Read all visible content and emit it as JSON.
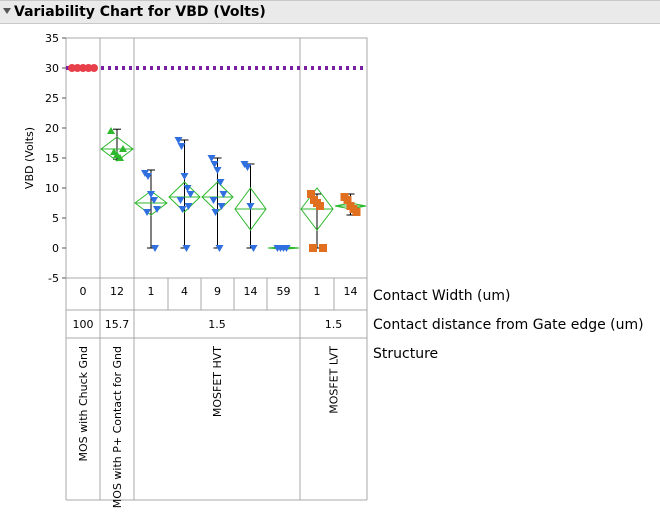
{
  "title": "Variability Chart for VBD (Volts)",
  "chart_data": {
    "type": "variability",
    "title": "Variability Chart for VBD (Volts)",
    "ylabel": "VBD (Volts)",
    "ylim": [
      -5,
      35
    ],
    "yticks": [
      -5,
      0,
      5,
      10,
      15,
      20,
      25,
      30,
      35
    ],
    "reference_line": 30,
    "colors": {
      "green": "#2db82d",
      "blue": "#2f6fe0",
      "orange": "#e07020",
      "red": "#e8404a",
      "purple": "#7a1fa0"
    },
    "factor_labels": [
      "Contact Width (um)",
      "Contact distance from Gate edge (um)",
      "Structure"
    ],
    "groups": [
      {
        "structure": "MOS with Chuck Gnd",
        "distance": "100",
        "cells": [
          {
            "width": "0",
            "marker": "red",
            "points": [
              30,
              30,
              30,
              30,
              30
            ],
            "mean": null,
            "range": [
              29.8,
              30.2
            ]
          }
        ]
      },
      {
        "structure": "MOS with P+ Contact for Gnd",
        "distance": "15.7",
        "cells": [
          {
            "width": "12",
            "marker": "green",
            "points": [
              19.5,
              16,
              15.5,
              15,
              16.5
            ],
            "mean": 16.5,
            "diamond": [
              14.5,
              18.5
            ],
            "range": [
              14.8,
              19.8
            ]
          }
        ]
      },
      {
        "structure": "MOSFET HVT",
        "distance": "1.5",
        "cells": [
          {
            "width": "1",
            "marker": "blue",
            "points": [
              12.5,
              12,
              9,
              8,
              6.5,
              6,
              0
            ],
            "mean": 7.5,
            "diamond": [
              5.5,
              9.5
            ],
            "range": [
              0,
              13
            ]
          },
          {
            "width": "4",
            "marker": "blue",
            "points": [
              18,
              17,
              12,
              10,
              9,
              8,
              7,
              6.5,
              0
            ],
            "mean": 8.5,
            "diamond": [
              6,
              11
            ],
            "range": [
              0,
              18
            ]
          },
          {
            "width": "9",
            "marker": "blue",
            "points": [
              15,
              14,
              13,
              11,
              9,
              8,
              7,
              6,
              0
            ],
            "mean": 8.5,
            "diamond": [
              6,
              11
            ],
            "range": [
              0,
              15
            ]
          },
          {
            "width": "14",
            "marker": "blue",
            "points": [
              14,
              13.5,
              7,
              0
            ],
            "mean": 6.5,
            "diamond": [
              3,
              10
            ],
            "range": [
              0,
              14
            ]
          },
          {
            "width": "59",
            "marker": "blue",
            "points": [
              0,
              0,
              0,
              0
            ],
            "mean": 0,
            "diamond": [
              -0.2,
              0.2
            ],
            "range": [
              -0.2,
              0.2
            ]
          }
        ]
      },
      {
        "structure": "MOSFET LVT",
        "distance": "1.5",
        "cells": [
          {
            "width": "1",
            "marker": "orange",
            "points": [
              9,
              8,
              7.5,
              7,
              0,
              0
            ],
            "mean": 6.5,
            "diamond": [
              3,
              10
            ],
            "range": [
              0,
              9
            ]
          },
          {
            "width": "14",
            "marker": "orange",
            "points": [
              8.5,
              8,
              7,
              6.5,
              6
            ],
            "mean": 7,
            "diamond": [
              6.5,
              7.5
            ],
            "range": [
              5.5,
              9
            ]
          }
        ]
      }
    ]
  }
}
